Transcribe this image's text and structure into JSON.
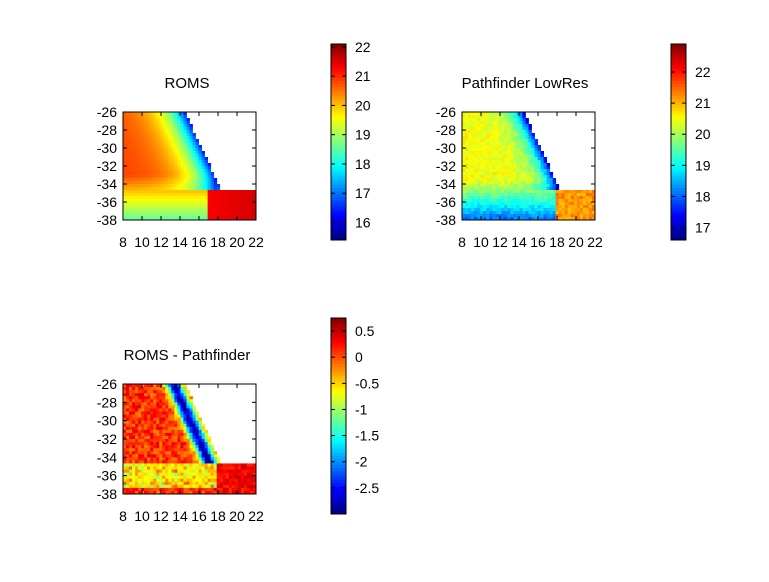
{
  "chart_data": [
    {
      "type": "heatmap",
      "title": "ROMS",
      "xlabel": "",
      "ylabel": "",
      "xlim": [
        8,
        22
      ],
      "ylim": [
        -38,
        -26
      ],
      "xticks": [
        "8",
        "10",
        "12",
        "14",
        "16",
        "18",
        "20",
        "22"
      ],
      "yticks": [
        "-26",
        "-28",
        "-30",
        "-32",
        "-34",
        "-36",
        "-38"
      ],
      "colorbar": {
        "min": 15.4,
        "max": 22.1,
        "ticks": [
          "16",
          "17",
          "18",
          "19",
          "20",
          "21",
          "22"
        ]
      }
    },
    {
      "type": "heatmap",
      "title": "Pathfinder LowRes",
      "xlabel": "",
      "ylabel": "",
      "xlim": [
        8,
        22
      ],
      "ylim": [
        -38,
        -26
      ],
      "xticks": [
        "8",
        "10",
        "12",
        "14",
        "16",
        "18",
        "20",
        "22"
      ],
      "yticks": [
        "-26",
        "-28",
        "-30",
        "-32",
        "-34",
        "-36",
        "-38"
      ],
      "colorbar": {
        "min": 16.6,
        "max": 22.9,
        "ticks": [
          "17",
          "18",
          "19",
          "20",
          "21",
          "22"
        ]
      }
    },
    {
      "type": "heatmap",
      "title": "ROMS - Pathfinder",
      "xlabel": "",
      "ylabel": "",
      "xlim": [
        8,
        22
      ],
      "ylim": [
        -38,
        -26
      ],
      "xticks": [
        "8",
        "10",
        "12",
        "14",
        "16",
        "18",
        "20",
        "22"
      ],
      "yticks": [
        "-26",
        "-28",
        "-30",
        "-32",
        "-34",
        "-36",
        "-38"
      ],
      "colorbar": {
        "min": -3.0,
        "max": 0.75,
        "ticks": [
          "0.5",
          "0",
          "-0.5",
          "-1",
          "-1.5",
          "-2",
          "-2.5"
        ]
      }
    }
  ]
}
